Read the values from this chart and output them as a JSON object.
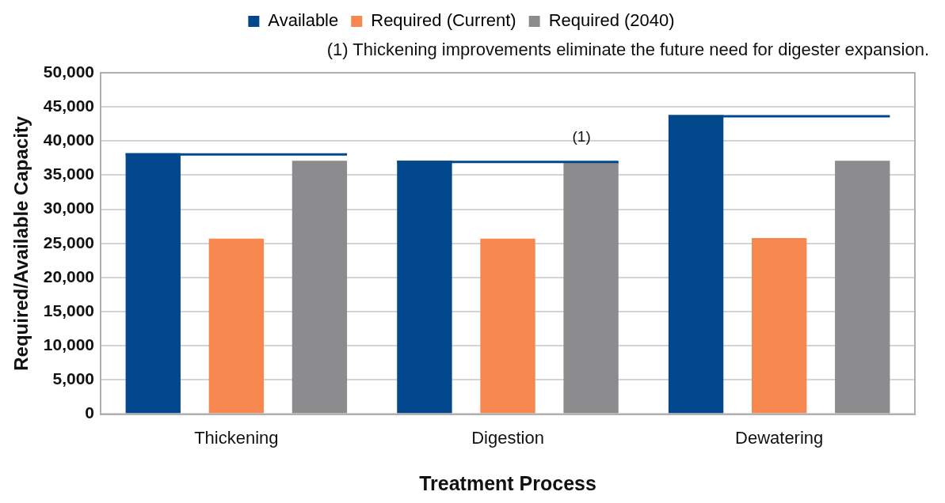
{
  "chart_data": {
    "type": "bar",
    "xlabel": "Treatment Process",
    "ylabel": "Required/Available Capacity",
    "categories": [
      "Thickening",
      "Digestion",
      "Dewatering"
    ],
    "series": [
      {
        "name": "Available",
        "color": "#03478c",
        "values": [
          38200,
          37100,
          43800
        ]
      },
      {
        "name": "Required (Current)",
        "color": "#f5874f",
        "values": [
          25700,
          25700,
          25800
        ]
      },
      {
        "name": "Required (2040)",
        "color": "#8c8c8e",
        "values": [
          37100,
          36900,
          37100
        ]
      }
    ],
    "ylim": [
      0,
      50000
    ],
    "yticks": [
      0,
      {
        "value": 5000,
        "label": "5,000"
      },
      {
        "value": 10000,
        "label": "10,000"
      },
      {
        "value": 15000,
        "label": "15,000"
      },
      {
        "value": 20000,
        "label": "20,000"
      },
      {
        "value": 25000,
        "label": "25,000"
      },
      {
        "value": 30000,
        "label": "30,000"
      },
      {
        "value": 35000,
        "label": "35,000"
      },
      {
        "value": 40000,
        "label": "40,000"
      },
      {
        "value": 45000,
        "label": "45,000"
      },
      {
        "value": 50000,
        "label": "50,000"
      }
    ],
    "ref_lines": [
      {
        "axis": "y",
        "value": 38200,
        "color": "#03478c"
      },
      {
        "axis": "y",
        "value": 37100,
        "color": "#03478c"
      },
      {
        "axis": "y",
        "value": 43800,
        "color": "#03478c"
      }
    ],
    "grid": "y",
    "legend": "top",
    "annotations": [
      "(1) Thickening improvements eliminate the future need for digester expansion.",
      "(1)"
    ]
  }
}
